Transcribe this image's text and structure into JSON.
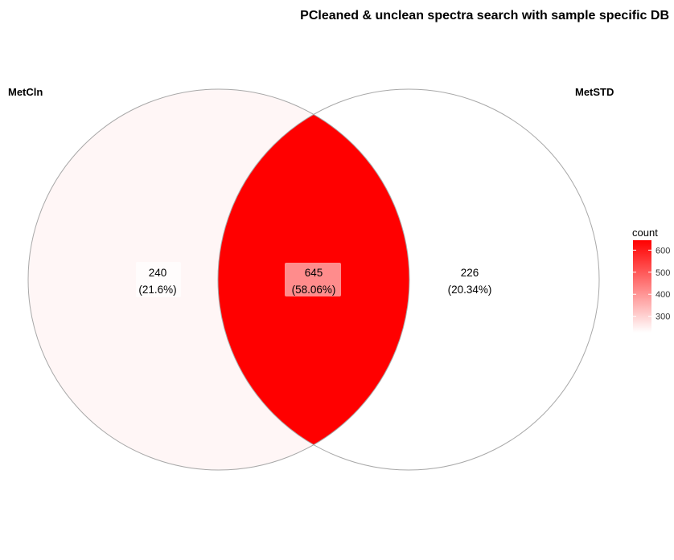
{
  "chart_data": {
    "type": "venn",
    "title": "PCleaned & unclean spectra search with sample specific DB",
    "sets": [
      {
        "name": "MetCln"
      },
      {
        "name": "MetSTD"
      }
    ],
    "regions": [
      {
        "sets": [
          "MetCln"
        ],
        "count": 240,
        "count_label": "240",
        "percent_label": "(21.6%)"
      },
      {
        "sets": [
          "MetCln",
          "MetSTD"
        ],
        "count": 645,
        "count_label": "645",
        "percent_label": "(58.06%)"
      },
      {
        "sets": [
          "MetSTD"
        ],
        "count": 226,
        "count_label": "226",
        "percent_label": "(20.34%)"
      }
    ],
    "legend": {
      "title": "count",
      "position": "right",
      "low_color": "#ffffff",
      "high_color": "#ff0000",
      "range": [
        226,
        645
      ],
      "ticks": [
        "300",
        "400",
        "500",
        "600"
      ],
      "tick_values": [
        300,
        400,
        500,
        600
      ]
    }
  }
}
